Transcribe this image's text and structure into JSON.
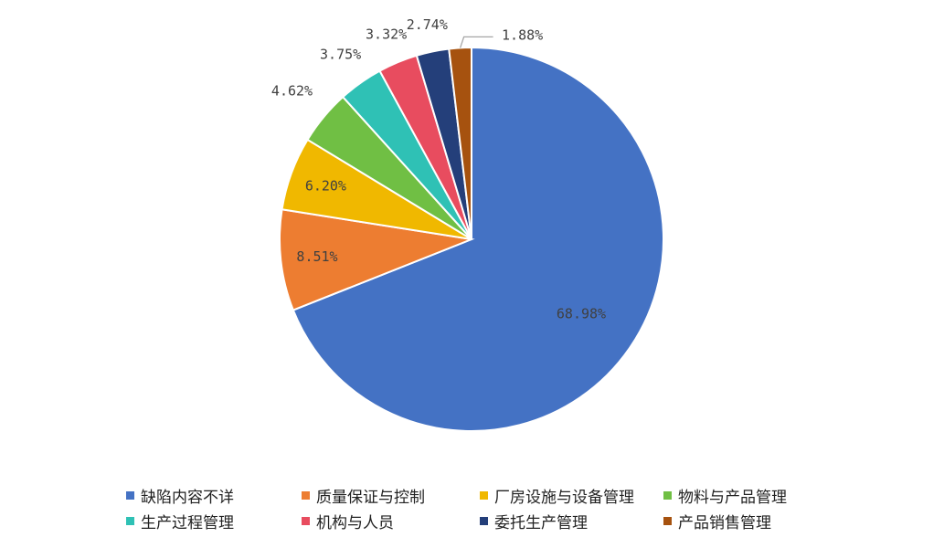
{
  "chart_data": {
    "type": "pie",
    "categories": [
      "缺陷内容不详",
      "质量保证与控制",
      "厂房设施与设备管理",
      "物料与产品管理",
      "生产过程管理",
      "机构与人员",
      "委托生产管理",
      "产品销售管理"
    ],
    "values": [
      68.98,
      8.51,
      6.2,
      4.62,
      3.75,
      3.32,
      2.74,
      1.88
    ],
    "labels": [
      "68.98%",
      "8.51%",
      "6.20%",
      "4.62%",
      "3.75%",
      "3.32%",
      "2.74%",
      "1.88%"
    ],
    "colors": [
      "#4472C4",
      "#ED7D31",
      "#F0B800",
      "#70BF44",
      "#2FC1B5",
      "#E84C5F",
      "#243F7A",
      "#A6520F"
    ],
    "title": "",
    "legend": "bottom"
  }
}
